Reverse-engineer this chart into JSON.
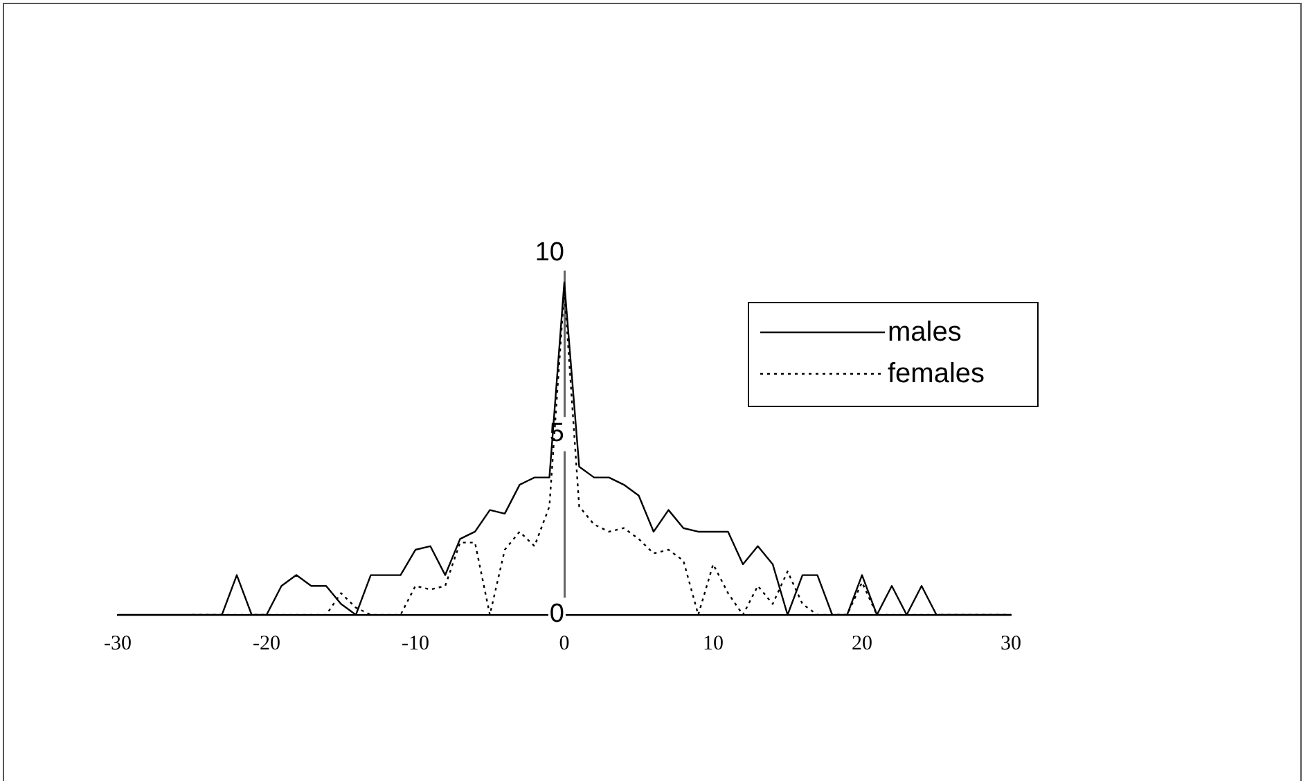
{
  "chart_data": {
    "type": "line",
    "x": [
      -30,
      -29,
      -28,
      -27,
      -26,
      -25,
      -24,
      -23,
      -22,
      -21,
      -20,
      -19,
      -18,
      -17,
      -16,
      -15,
      -14,
      -13,
      -12,
      -11,
      -10,
      -9,
      -8,
      -7,
      -6,
      -5,
      -4,
      -3,
      -2,
      -1,
      0,
      1,
      2,
      3,
      4,
      5,
      6,
      7,
      8,
      9,
      10,
      11,
      12,
      13,
      14,
      15,
      16,
      17,
      18,
      19,
      20,
      21,
      22,
      23,
      24,
      25,
      26,
      27,
      28,
      29,
      30
    ],
    "series": [
      {
        "name": "males",
        "color": "#000000",
        "line_style": "solid",
        "values": [
          0,
          0,
          0,
          0,
          0,
          0,
          0,
          0,
          1.1,
          0,
          0,
          0.8,
          1.1,
          0.8,
          0.8,
          0.3,
          0,
          1.1,
          1.1,
          1.1,
          1.8,
          1.9,
          1.1,
          2.1,
          2.3,
          2.9,
          2.8,
          3.6,
          3.8,
          3.8,
          9.2,
          4.1,
          3.8,
          3.8,
          3.6,
          3.3,
          2.3,
          2.9,
          2.4,
          2.3,
          2.3,
          2.3,
          1.4,
          1.9,
          1.4,
          0,
          1.1,
          1.1,
          0,
          0,
          1.1,
          0,
          0.8,
          0,
          0.8,
          0,
          0,
          0,
          0,
          0,
          0
        ]
      },
      {
        "name": "females",
        "color": "#000000",
        "line_style": "dotted",
        "values": [
          null,
          null,
          null,
          null,
          null,
          0,
          0,
          0,
          0,
          0,
          0,
          0,
          0,
          0,
          0,
          0.6,
          0.2,
          0,
          0,
          0,
          0.8,
          0.7,
          0.8,
          2.0,
          2.0,
          0,
          1.8,
          2.3,
          1.9,
          3.0,
          9.0,
          3.0,
          2.5,
          2.3,
          2.4,
          2.1,
          1.7,
          1.8,
          1.5,
          0,
          1.4,
          0.6,
          0,
          0.8,
          0.3,
          1.2,
          0.3,
          0,
          0,
          0,
          0.9,
          0,
          0,
          0,
          0,
          0,
          0,
          0,
          0,
          0,
          0
        ]
      }
    ],
    "xlim": [
      -30,
      30
    ],
    "xticks": [
      -30,
      -20,
      -10,
      0,
      10,
      20,
      30
    ],
    "ylim": [
      0,
      10
    ],
    "yticks": [
      0,
      5,
      10
    ],
    "grid": false,
    "legend": "top right",
    "marker": "none"
  }
}
